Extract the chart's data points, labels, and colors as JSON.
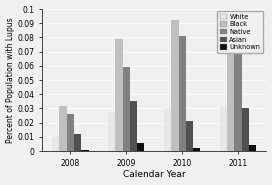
{
  "years": [
    "2008",
    "2009",
    "2010",
    "2011"
  ],
  "series": {
    "White": [
      0.01,
      0.027,
      0.03,
      0.031
    ],
    "Black": [
      0.032,
      0.079,
      0.092,
      0.075
    ],
    "Native": [
      0.026,
      0.059,
      0.081,
      0.075
    ],
    "Asian": [
      0.012,
      0.035,
      0.021,
      0.03
    ],
    "Unknown": [
      0.001,
      0.006,
      0.002,
      0.004
    ]
  },
  "colors": {
    "White": "#e8e8e8",
    "Black": "#c0c0c0",
    "Native": "#808080",
    "Asian": "#505050",
    "Unknown": "#101010"
  },
  "xlabel": "Calendar Year",
  "ylabel": "Percent of Population with Lupus",
  "ylim": [
    0,
    0.1
  ],
  "ytick_vals": [
    0.0,
    0.01,
    0.02,
    0.03,
    0.04,
    0.05,
    0.06,
    0.07,
    0.08,
    0.09,
    0.1
  ],
  "ytick_labels": [
    "0",
    "0.01",
    "0.02",
    "0.03",
    "0.04",
    "0.05",
    "0.06",
    "0.07",
    "0.08",
    "0.09",
    "0.1"
  ],
  "legend_order": [
    "White",
    "Black",
    "Native",
    "Asian",
    "Unknown"
  ],
  "bar_width": 0.13,
  "figsize": [
    2.72,
    1.85
  ],
  "dpi": 100
}
